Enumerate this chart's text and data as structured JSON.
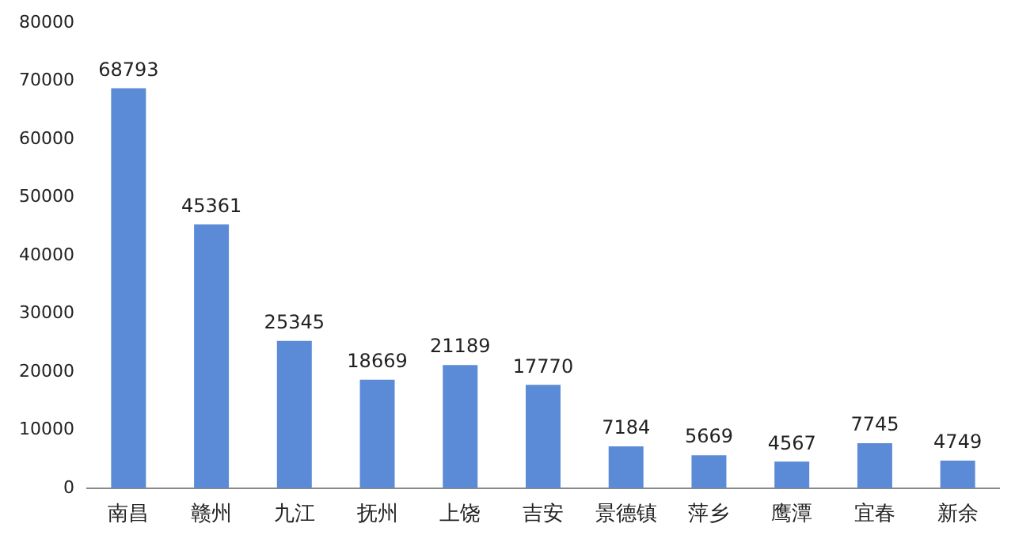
{
  "chart_data": {
    "type": "bar",
    "categories": [
      "南昌",
      "赣州",
      "九江",
      "抚州",
      "上饶",
      "吉安",
      "景德镇",
      "萍乡",
      "鹰潭",
      "宜春",
      "新余"
    ],
    "values": [
      68793,
      45361,
      25345,
      18669,
      21189,
      17770,
      7184,
      5669,
      4567,
      7745,
      4749
    ],
    "color": "#5b8bd6",
    "ylim": [
      0,
      80000
    ],
    "yticks": [
      0,
      10000,
      20000,
      30000,
      40000,
      50000,
      60000,
      70000,
      80000
    ],
    "grid": false,
    "legend": false,
    "data_labels": true
  }
}
